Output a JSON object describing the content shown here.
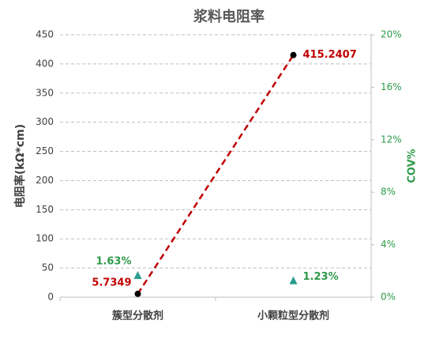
{
  "chart_data": {
    "type": "line-scatter",
    "title": "浆料电阻率",
    "categories": [
      "簇型分散剂",
      "小颗粒型分散剂"
    ],
    "ylabel": "电阻率(kΩ*cm)",
    "y2label": "COV%",
    "ylim": [
      0,
      450
    ],
    "yticks": [
      0,
      50,
      100,
      150,
      200,
      250,
      300,
      350,
      400,
      450
    ],
    "y2lim": [
      0,
      20
    ],
    "y2ticks": [
      {
        "value": 0,
        "label": "0%"
      },
      {
        "value": 4,
        "label": "4%"
      },
      {
        "value": 8,
        "label": "8%"
      },
      {
        "value": 12,
        "label": "12%"
      },
      {
        "value": 16,
        "label": "16%"
      },
      {
        "value": 20,
        "label": "20%"
      }
    ],
    "y2_color": "#2e9a4a",
    "grid": true,
    "series": [
      {
        "color": "#000000",
        "line_color": "#c00000",
        "label_color": "#c00000",
        "values": [
          5.7349,
          415.2407
        ]
      },
      {
        "color": "#2a9d8f",
        "label_color": "#2e9a4a",
        "axis": "y2",
        "values": [
          1.63,
          1.23
        ],
        "value_labels": [
          "1.63%",
          "1.23%"
        ]
      }
    ]
  }
}
